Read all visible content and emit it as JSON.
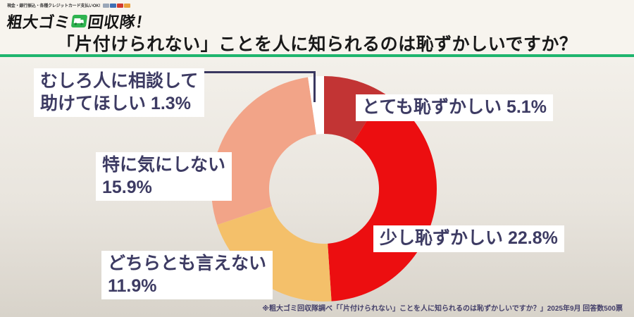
{
  "header": {
    "logo": {
      "tagline": "現金・銀行振込・各種クレジットカード支払いOK!",
      "card_colors": [
        "#9aa7b8",
        "#3f6fb4",
        "#d23a2e",
        "#e9a13b"
      ],
      "name_left": "粗大ゴミ",
      "name_right": "回収隊！"
    },
    "title": "「片付けられない」ことを人に知られるのは恥ずかしいですか？",
    "accent_color": "#1fb56e"
  },
  "chart_data": {
    "type": "pie",
    "donut": true,
    "title": "「片付けられない」ことを人に知られるのは恥ずかしいですか？",
    "legend_position": "callout-labels",
    "start_angle_deg": 0,
    "direction": "clockwise",
    "segments": [
      {
        "label": "とても恥ずかしい",
        "value": 5.1,
        "color": "#c23434"
      },
      {
        "label": "少し恥ずかしい",
        "value": 22.8,
        "color": "#ec0e10"
      },
      {
        "label": "どちらとも言えない",
        "value": 11.9,
        "color": "#f4c06a"
      },
      {
        "label": "特に気にしない",
        "value": 15.9,
        "color": "#f2a488"
      },
      {
        "label": "むしろ人に相談して助けてほしい",
        "value": 1.3,
        "color": "#ffffff"
      }
    ]
  },
  "callouts": {
    "mushiro": {
      "lines": [
        "むしろ人に相談して",
        "助けてほしい 1.3%"
      ]
    },
    "totemo": {
      "lines": [
        "とても恥ずかしい 5.1%"
      ]
    },
    "sukoshi": {
      "lines": [
        "少し恥ずかしい 22.8%"
      ]
    },
    "tokuni": {
      "lines": [
        "特に気にしない",
        "15.9%"
      ]
    },
    "dochira": {
      "lines": [
        "どちらとも言えない",
        "11.9%"
      ]
    }
  },
  "footnote": "※粗大ゴミ回収隊調べ「「片付けられない」ことを人に知られるのは恥ずかしいですか？」2025年9月 回答数500票"
}
